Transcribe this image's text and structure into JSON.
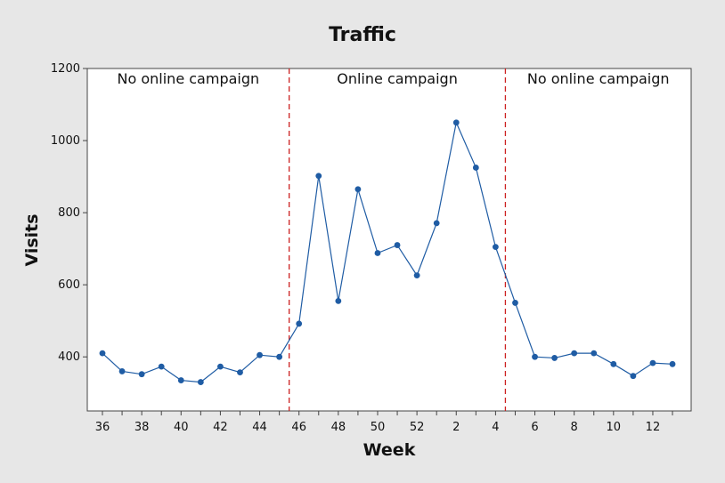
{
  "chart_data": {
    "type": "line",
    "title": "Traffic",
    "xlabel": "Week",
    "ylabel": "Visits",
    "ylim": [
      250,
      1200
    ],
    "y_ticks": [
      400,
      600,
      800,
      1000,
      1200
    ],
    "x_tick_labels": [
      "36",
      "38",
      "40",
      "42",
      "44",
      "46",
      "48",
      "50",
      "52",
      "2",
      "4",
      "6",
      "8",
      "10",
      "12"
    ],
    "x": [
      "36",
      "37",
      "38",
      "39",
      "40",
      "41",
      "42",
      "43",
      "44",
      "45",
      "46",
      "47",
      "48",
      "49",
      "50",
      "51",
      "52",
      "1",
      "2",
      "3",
      "4",
      "5",
      "6",
      "7",
      "8",
      "9",
      "10",
      "11",
      "12",
      "13"
    ],
    "series": [
      {
        "values": [
          410,
          360,
          352,
          373,
          335,
          330,
          373,
          357,
          405,
          400,
          492,
          902,
          555,
          865,
          688,
          710,
          626,
          771,
          1050,
          925,
          705,
          550,
          400,
          397,
          410,
          410,
          380,
          347,
          383,
          380
        ],
        "color": "#1f5ca4"
      }
    ],
    "reference_lines": [
      {
        "after_week": "45",
        "color": "#cc2222",
        "style": "dashed"
      },
      {
        "after_week": "4",
        "color": "#cc2222",
        "style": "dashed"
      }
    ],
    "regions": [
      {
        "label": "No online campaign"
      },
      {
        "label": "Online campaign"
      },
      {
        "label": "No online campaign"
      }
    ],
    "grid": false,
    "legend": "none"
  }
}
